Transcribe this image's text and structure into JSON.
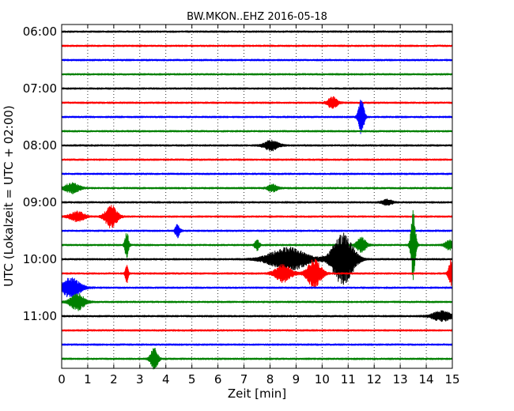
{
  "chart_data": {
    "type": "line",
    "title": "BW.MKON..EHZ 2016-05-18",
    "xlabel": "Zeit  [min]",
    "ylabel": "UTC (Lokalzeit = UTC + 02:00)",
    "xlim": [
      0,
      15
    ],
    "xticks": [
      "0",
      "1",
      "2",
      "3",
      "4",
      "5",
      "6",
      "7",
      "8",
      "9",
      "10",
      "11",
      "12",
      "13",
      "14",
      "15"
    ],
    "yticks": [
      {
        "label": "06:00",
        "trace": 0
      },
      {
        "label": "07:00",
        "trace": 4
      },
      {
        "label": "08:00",
        "trace": 8
      },
      {
        "label": "09:00",
        "trace": 12
      },
      {
        "label": "10:00",
        "trace": 16
      },
      {
        "label": "11:00",
        "trace": 20
      }
    ],
    "grid": "vertical-dotted",
    "colors": [
      "#000000",
      "#ff0000",
      "#0000ff",
      "#008000"
    ],
    "traces": [
      {
        "start": "06:00",
        "color": "#000000",
        "events": []
      },
      {
        "start": "06:15",
        "color": "#ff0000",
        "events": []
      },
      {
        "start": "06:30",
        "color": "#0000ff",
        "events": []
      },
      {
        "start": "06:45",
        "color": "#008000",
        "events": []
      },
      {
        "start": "07:00",
        "color": "#000000",
        "events": []
      },
      {
        "start": "07:15",
        "color": "#ff0000",
        "events": [
          {
            "t": 10.4,
            "amp": 0.4,
            "dur": 0.2
          }
        ]
      },
      {
        "start": "07:30",
        "color": "#0000ff",
        "events": [
          {
            "t": 11.5,
            "amp": 1.3,
            "dur": 0.12
          }
        ]
      },
      {
        "start": "07:45",
        "color": "#008000",
        "events": []
      },
      {
        "start": "08:00",
        "color": "#000000",
        "events": [
          {
            "t": 8.05,
            "amp": 0.35,
            "dur": 0.3
          }
        ]
      },
      {
        "start": "08:15",
        "color": "#ff0000",
        "events": []
      },
      {
        "start": "08:30",
        "color": "#0000ff",
        "events": []
      },
      {
        "start": "08:45",
        "color": "#008000",
        "events": [
          {
            "t": 0.4,
            "amp": 0.35,
            "dur": 0.3
          },
          {
            "t": 8.1,
            "amp": 0.25,
            "dur": 0.2
          }
        ]
      },
      {
        "start": "09:00",
        "color": "#000000",
        "events": [
          {
            "t": 12.5,
            "amp": 0.2,
            "dur": 0.2
          }
        ]
      },
      {
        "start": "09:15",
        "color": "#ff0000",
        "events": [
          {
            "t": 0.6,
            "amp": 0.35,
            "dur": 0.3
          },
          {
            "t": 1.9,
            "amp": 0.8,
            "dur": 0.25
          }
        ]
      },
      {
        "start": "09:30",
        "color": "#0000ff",
        "events": [
          {
            "t": 4.45,
            "amp": 0.45,
            "dur": 0.1
          }
        ]
      },
      {
        "start": "09:45",
        "color": "#008000",
        "events": [
          {
            "t": 2.5,
            "amp": 0.9,
            "dur": 0.08
          },
          {
            "t": 7.5,
            "amp": 0.35,
            "dur": 0.1
          },
          {
            "t": 11.5,
            "amp": 0.55,
            "dur": 0.2
          },
          {
            "t": 13.5,
            "amp": 2.4,
            "dur": 0.1
          },
          {
            "t": 14.9,
            "amp": 0.35,
            "dur": 0.2
          }
        ]
      },
      {
        "start": "10:00",
        "color": "#000000",
        "events": [
          {
            "t": 8.7,
            "amp": 0.8,
            "dur": 0.8
          },
          {
            "t": 10.8,
            "amp": 1.8,
            "dur": 0.45
          }
        ]
      },
      {
        "start": "10:15",
        "color": "#ff0000",
        "events": [
          {
            "t": 2.5,
            "amp": 0.7,
            "dur": 0.06
          },
          {
            "t": 8.5,
            "amp": 0.6,
            "dur": 0.35
          },
          {
            "t": 9.7,
            "amp": 1.0,
            "dur": 0.3
          },
          {
            "t": 14.95,
            "amp": 1.0,
            "dur": 0.1
          }
        ]
      },
      {
        "start": "10:30",
        "color": "#0000ff",
        "events": [
          {
            "t": 0.35,
            "amp": 0.7,
            "dur": 0.4
          }
        ]
      },
      {
        "start": "10:45",
        "color": "#008000",
        "events": [
          {
            "t": 0.6,
            "amp": 0.6,
            "dur": 0.3
          }
        ]
      },
      {
        "start": "11:00",
        "color": "#000000",
        "events": [
          {
            "t": 14.6,
            "amp": 0.35,
            "dur": 0.4
          }
        ]
      },
      {
        "start": "11:15",
        "color": "#ff0000",
        "events": []
      },
      {
        "start": "11:30",
        "color": "#0000ff",
        "events": []
      },
      {
        "start": "11:45",
        "color": "#008000",
        "events": [
          {
            "t": 3.55,
            "amp": 0.8,
            "dur": 0.15
          }
        ]
      }
    ]
  }
}
